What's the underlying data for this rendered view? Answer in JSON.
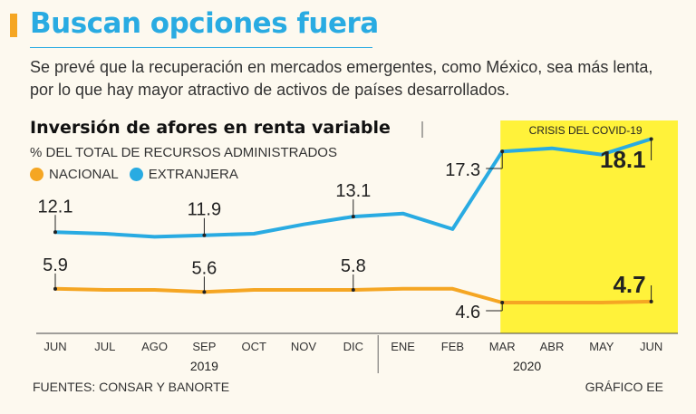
{
  "headline": "Buscan opciones fuera",
  "subtitle": "Se prevé que la recuperación en mercados emergentes, como México, sea más lenta, por lo que hay mayor atractivo de activos de países desarrollados.",
  "footer": {
    "source": "FUENTES: CONSAR Y BANORTE",
    "credit": "GRÁFICO EE"
  },
  "colors": {
    "accent": "#f5a623",
    "headline": "#29abe2",
    "nacional": "#f5a623",
    "extranjera": "#29abe2",
    "highlight": "#fff23a"
  },
  "chart_data": {
    "type": "line",
    "title": "Inversión de afores en renta variable",
    "unit": "% DEL TOTAL DE RECURSOS ADMINISTRADOS",
    "categories": [
      "JUN",
      "JUL",
      "AGO",
      "SEP",
      "OCT",
      "NOV",
      "DIC",
      "ENE",
      "FEB",
      "MAR",
      "ABR",
      "MAY",
      "JUN"
    ],
    "years": [
      {
        "label": "2019",
        "from": 0,
        "to": 6
      },
      {
        "label": "2020",
        "from": 7,
        "to": 12
      }
    ],
    "series": [
      {
        "name": "NACIONAL",
        "color": "#f5a623",
        "values": [
          5.9,
          5.8,
          5.8,
          5.6,
          5.8,
          5.8,
          5.8,
          5.9,
          5.9,
          4.6,
          4.6,
          4.6,
          4.7
        ]
      },
      {
        "name": "EXTRANJERA",
        "color": "#29abe2",
        "values": [
          12.1,
          12.0,
          11.8,
          11.9,
          12.0,
          12.6,
          13.1,
          13.3,
          12.3,
          17.3,
          17.5,
          17.1,
          18.1
        ]
      }
    ],
    "highlight": {
      "label": "CRISIS DEL COVID-19",
      "from": 9,
      "to": 12
    },
    "annotations": [
      {
        "series": 1,
        "index": 0,
        "text": "12.1"
      },
      {
        "series": 1,
        "index": 3,
        "text": "11.9"
      },
      {
        "series": 1,
        "index": 6,
        "text": "13.1"
      },
      {
        "series": 1,
        "index": 9,
        "text": "17.3"
      },
      {
        "series": 1,
        "index": 12,
        "text": "18.1",
        "bold": true
      },
      {
        "series": 0,
        "index": 0,
        "text": "5.9"
      },
      {
        "series": 0,
        "index": 3,
        "text": "5.6"
      },
      {
        "series": 0,
        "index": 6,
        "text": "5.8"
      },
      {
        "series": 0,
        "index": 9,
        "text": "4.6"
      },
      {
        "series": 0,
        "index": 12,
        "text": "4.7",
        "bold": true
      }
    ],
    "grid": false
  }
}
